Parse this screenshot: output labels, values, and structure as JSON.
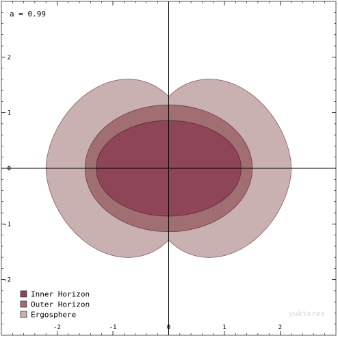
{
  "chart_data": {
    "type": "area",
    "title": "",
    "xlabel": "",
    "ylabel": "",
    "xlim": [
      -3,
      3
    ],
    "ylim": [
      -3,
      3
    ],
    "x_ticks": [
      -2,
      -1,
      0,
      1,
      2
    ],
    "y_ticks": [
      -2,
      -1,
      0,
      1,
      2
    ],
    "annotation": "a = 0.99",
    "watermark": "yukteres",
    "legend_position": "bottom-left",
    "series": [
      {
        "name": "Ergosphere",
        "shape": "peanut",
        "equatorial_radius": 2.2,
        "polar_radius": 1.14,
        "color": "#c9b1b1",
        "stroke": "#8a5a60"
      },
      {
        "name": "Outer Horizon",
        "shape": "ellipse",
        "semi_axis_x": 1.5,
        "semi_axis_y": 1.14,
        "color": "#a16e71",
        "stroke": "#6a3a42"
      },
      {
        "name": "Inner Horizon",
        "shape": "ellipse",
        "semi_axis_x": 1.3,
        "semi_axis_y": 0.86,
        "color": "#8d4557",
        "stroke": "#5a2a36"
      }
    ],
    "legend": [
      {
        "label": "Inner Horizon",
        "color": "#8d4557"
      },
      {
        "label": "Outer Horizon",
        "color": "#a16e71"
      },
      {
        "label": "Ergosphere",
        "color": "#c9b1b1"
      }
    ]
  }
}
